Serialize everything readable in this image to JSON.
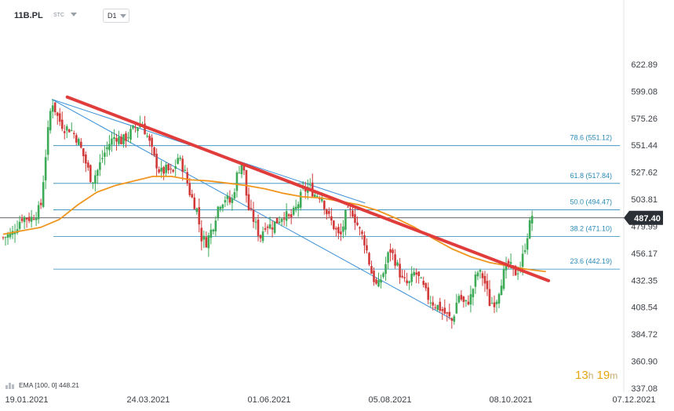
{
  "toolbar": {
    "symbol": "11B.PL",
    "symbol_sub": "STC",
    "timeframe": "D1"
  },
  "countdown": {
    "hours": "13",
    "h_unit": "h",
    "minutes": "19",
    "m_unit": "m"
  },
  "ema_legend": "EMA [100, 0] 448.21",
  "colors": {
    "bull": "#3daa57",
    "bear": "#d23a3a",
    "ema": "#f0961e",
    "trendline": "#e03c3c",
    "channel": "#3a8fd8",
    "fib": "#2a8ab8",
    "price_badge": "#2b2f36"
  },
  "chart_data": {
    "type": "candlestick",
    "title": "",
    "xlabel": "",
    "ylabel": "",
    "ylim": [
      337.08,
      636.0
    ],
    "yticks": [
      "622.89",
      "599.08",
      "575.26",
      "551.44",
      "527.62",
      "503.81",
      "479.99",
      "456.17",
      "432.35",
      "408.54",
      "384.72",
      "360.90",
      "337.08"
    ],
    "xtick_labels": [
      "19.01.2021",
      "24.03.2021",
      "01.06.2021",
      "05.08.2021",
      "08.10.2021",
      "07.12.2021"
    ],
    "current_price": "487.40",
    "fib_levels": [
      {
        "label": "78.6 (551.12)",
        "value": 551.12
      },
      {
        "label": "61.8 (517.84)",
        "value": 517.84
      },
      {
        "label": "50.0 (494.47)",
        "value": 494.47
      },
      {
        "label": "38.2 (471.10)",
        "value": 471.1
      },
      {
        "label": "23.6 (442.19)",
        "value": 442.19
      }
    ],
    "horizontal_line": 487.4,
    "trendline": {
      "start": [
        0.1028,
        594.0
      ],
      "end": [
        0.8743,
        432.0
      ]
    },
    "channel": {
      "upper": {
        "start": [
          0.0781,
          592.0
        ],
        "end": [
          0.7227,
          397.0
        ]
      },
      "lower": {
        "start": [
          0.0781,
          592.0
        ],
        "end": [
          0.5803,
          500.5
        ]
      }
    },
    "ema": [
      [
        0.0,
        473
      ],
      [
        0.03,
        476
      ],
      [
        0.06,
        479
      ],
      [
        0.09,
        486
      ],
      [
        0.12,
        499
      ],
      [
        0.15,
        510
      ],
      [
        0.18,
        516
      ],
      [
        0.21,
        520
      ],
      [
        0.24,
        524
      ],
      [
        0.27,
        524
      ],
      [
        0.3,
        521
      ],
      [
        0.33,
        520
      ],
      [
        0.36,
        518
      ],
      [
        0.39,
        516
      ],
      [
        0.42,
        513
      ],
      [
        0.45,
        509
      ],
      [
        0.48,
        506
      ],
      [
        0.51,
        505
      ],
      [
        0.54,
        502
      ],
      [
        0.57,
        499
      ],
      [
        0.6,
        494
      ],
      [
        0.63,
        487
      ],
      [
        0.66,
        479
      ],
      [
        0.69,
        469
      ],
      [
        0.72,
        460
      ],
      [
        0.75,
        453
      ],
      [
        0.78,
        448
      ],
      [
        0.81,
        445
      ],
      [
        0.84,
        442
      ],
      [
        0.87,
        440
      ]
    ],
    "candles_close_path": [
      [
        0.0,
        470
      ],
      [
        0.015,
        474
      ],
      [
        0.03,
        488
      ],
      [
        0.045,
        487
      ],
      [
        0.06,
        496
      ],
      [
        0.07,
        554
      ],
      [
        0.078,
        592
      ],
      [
        0.088,
        575
      ],
      [
        0.098,
        567
      ],
      [
        0.108,
        566
      ],
      [
        0.12,
        556
      ],
      [
        0.13,
        540
      ],
      [
        0.142,
        520
      ],
      [
        0.152,
        530
      ],
      [
        0.16,
        542
      ],
      [
        0.17,
        553
      ],
      [
        0.18,
        560
      ],
      [
        0.19,
        555
      ],
      [
        0.2,
        560
      ],
      [
        0.21,
        566
      ],
      [
        0.222,
        572
      ],
      [
        0.232,
        558
      ],
      [
        0.242,
        540
      ],
      [
        0.252,
        527
      ],
      [
        0.262,
        530
      ],
      [
        0.272,
        526
      ],
      [
        0.28,
        541
      ],
      [
        0.29,
        530
      ],
      [
        0.3,
        508
      ],
      [
        0.31,
        496
      ],
      [
        0.318,
        470
      ],
      [
        0.326,
        466
      ],
      [
        0.336,
        480
      ],
      [
        0.346,
        500
      ],
      [
        0.356,
        505
      ],
      [
        0.366,
        500
      ],
      [
        0.376,
        528
      ],
      [
        0.384,
        538
      ],
      [
        0.392,
        497
      ],
      [
        0.402,
        485
      ],
      [
        0.412,
        470
      ],
      [
        0.42,
        482
      ],
      [
        0.43,
        480
      ],
      [
        0.44,
        485
      ],
      [
        0.45,
        491
      ],
      [
        0.46,
        486
      ],
      [
        0.47,
        496
      ],
      [
        0.48,
        510
      ],
      [
        0.49,
        515
      ],
      [
        0.5,
        508
      ],
      [
        0.51,
        508
      ],
      [
        0.52,
        490
      ],
      [
        0.53,
        480
      ],
      [
        0.54,
        469
      ],
      [
        0.55,
        492
      ],
      [
        0.56,
        493
      ],
      [
        0.57,
        478
      ],
      [
        0.58,
        466
      ],
      [
        0.59,
        440
      ],
      [
        0.6,
        425
      ],
      [
        0.61,
        440
      ],
      [
        0.62,
        460
      ],
      [
        0.63,
        448
      ],
      [
        0.64,
        432
      ],
      [
        0.65,
        428
      ],
      [
        0.66,
        440
      ],
      [
        0.67,
        430
      ],
      [
        0.68,
        418
      ],
      [
        0.69,
        412
      ],
      [
        0.7,
        408
      ],
      [
        0.71,
        402
      ],
      [
        0.72,
        396
      ],
      [
        0.73,
        420
      ],
      [
        0.74,
        410
      ],
      [
        0.75,
        418
      ],
      [
        0.76,
        440
      ],
      [
        0.77,
        435
      ],
      [
        0.78,
        412
      ],
      [
        0.79,
        414
      ],
      [
        0.8,
        435
      ],
      [
        0.81,
        447
      ],
      [
        0.82,
        438
      ],
      [
        0.83,
        445
      ],
      [
        0.84,
        472
      ],
      [
        0.848,
        490
      ]
    ]
  }
}
